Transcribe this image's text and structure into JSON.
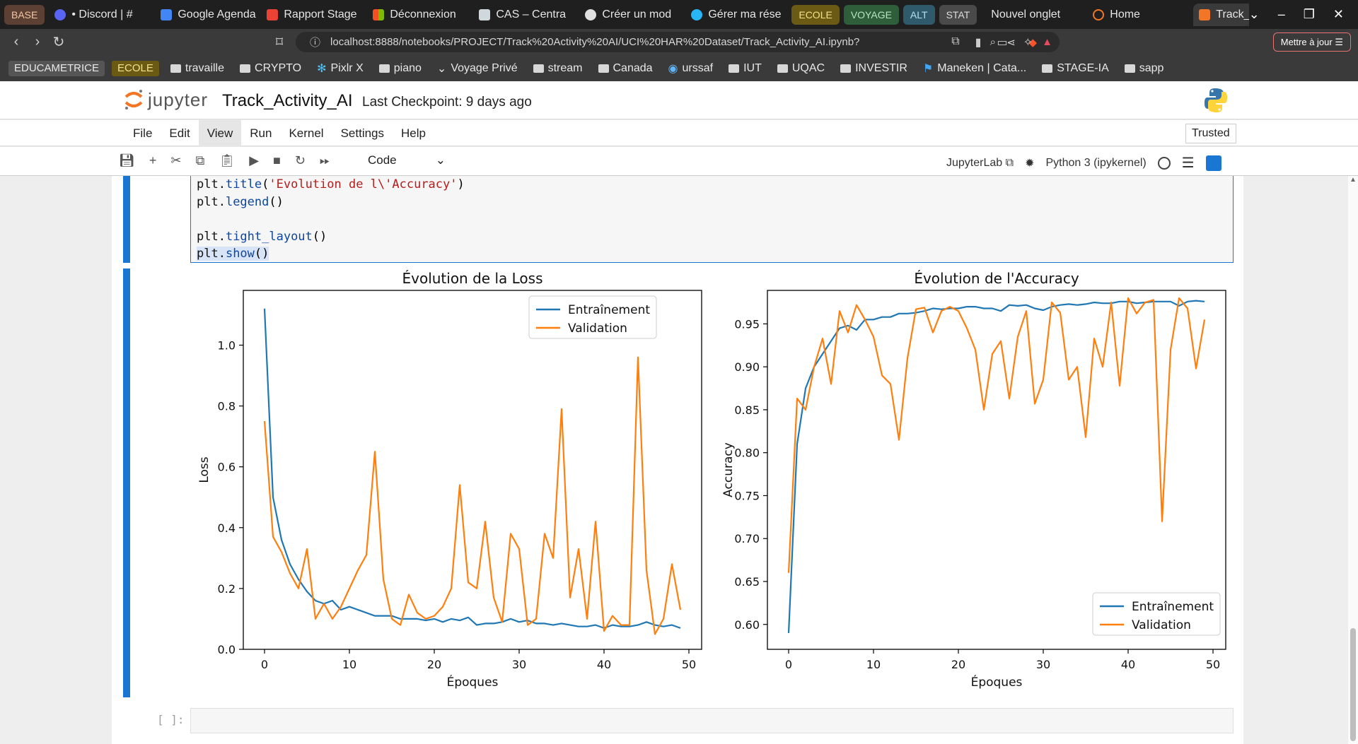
{
  "browser": {
    "tab_groups": [
      {
        "label": "BASE",
        "color": "#5c4033"
      },
      {
        "label": "ECOLE",
        "color": "#6b5a14"
      },
      {
        "label": "VOYAGE",
        "color": "#2e5e3a"
      },
      {
        "label": "ALT",
        "color": "#2f5a6b"
      },
      {
        "label": "STAT",
        "color": "#4a4a4a"
      }
    ],
    "tabs": [
      {
        "title": "• Discord | #",
        "color": "#5865f2"
      },
      {
        "title": "Google Agenda",
        "color": "#4285f4"
      },
      {
        "title": "Rapport Stage",
        "color": "#ea4335"
      },
      {
        "title": "Déconnexion",
        "color": "#f25022"
      },
      {
        "title": "CAS – Centra",
        "color": "#cfd8dc"
      },
      {
        "title": "Créer un mod",
        "color": "#e0e0e0"
      },
      {
        "title": "Gérer ma rése",
        "color": "#29b6f6"
      }
    ],
    "tabs_after": [
      {
        "title": "Nouvel onglet"
      },
      {
        "title": "Home",
        "color": "#f37626"
      }
    ],
    "active_tab": "Track_Ac",
    "url": "localhost:8888/notebooks/PROJECT/Track%20Activity%20AI/UCI%20HAR%20Dataset/Track_Activity_AI.ipynb?",
    "update_button": "Mettre à jour",
    "bookmark_groups": [
      {
        "label": "EDUCAMETRICE",
        "color": "#555"
      },
      {
        "label": "ECOLE",
        "color": "#6b5a14"
      }
    ],
    "bookmarks": [
      "travaille",
      "CRYPTO",
      "Pixlr X",
      "piano",
      "Voyage Privé",
      "stream",
      "Canada",
      "urssaf",
      "IUT",
      "UQAC",
      "INVESTIR",
      "Maneken | Cata...",
      "STAGE-IA",
      "sapp"
    ]
  },
  "jupyter": {
    "logo_text": "jupyter",
    "notebook_title": "Track_Activity_AI",
    "checkpoint": "Last Checkpoint: 9 days ago",
    "menu": [
      "File",
      "Edit",
      "View",
      "Run",
      "Kernel",
      "Settings",
      "Help"
    ],
    "active_menu": "View",
    "trusted": "Trusted",
    "cell_type": "Code",
    "jupyterlab_link": "JupyterLab",
    "kernel": "Python 3 (ipykernel)",
    "empty_prompt": "[ ]:"
  },
  "code_lines": [
    {
      "obj": "plt.",
      "fn": "title",
      "rest_open": "(",
      "str": "'Evolution de l\\'Accuracy'",
      "rest_close": ")"
    },
    {
      "obj": "plt.",
      "fn": "legend",
      "rest_open": "()",
      "str": "",
      "rest_close": ""
    },
    {
      "obj": "",
      "fn": "",
      "rest_open": "",
      "str": "",
      "rest_close": ""
    },
    {
      "obj": "plt.",
      "fn": "tight_layout",
      "rest_open": "()",
      "str": "",
      "rest_close": ""
    },
    {
      "obj": "plt.",
      "fn": "show",
      "rest_open": "()",
      "str": "",
      "rest_close": "",
      "highlight": true
    }
  ],
  "chart_data": [
    {
      "type": "line",
      "title": "Évolution de la Loss",
      "xlabel": "Époques",
      "ylabel": "Loss",
      "xlim": [
        -2.5,
        51.5
      ],
      "ylim": [
        0.0,
        1.18
      ],
      "xticks": [
        0,
        10,
        20,
        30,
        40,
        50
      ],
      "yticks": [
        0.0,
        0.2,
        0.4,
        0.6,
        0.8,
        1.0
      ],
      "ytick_labels": [
        "0.0",
        "0.2",
        "0.4",
        "0.6",
        "0.8",
        "1.0"
      ],
      "legend_position": "top-right",
      "x": [
        0,
        1,
        2,
        3,
        4,
        5,
        6,
        7,
        8,
        9,
        10,
        11,
        12,
        13,
        14,
        15,
        16,
        17,
        18,
        19,
        20,
        21,
        22,
        23,
        24,
        25,
        26,
        27,
        28,
        29,
        30,
        31,
        32,
        33,
        34,
        35,
        36,
        37,
        38,
        39,
        40,
        41,
        42,
        43,
        44,
        45,
        46,
        47,
        48,
        49
      ],
      "series": [
        {
          "name": "Entraînement",
          "color": "#1f77b4",
          "values": [
            1.12,
            0.5,
            0.36,
            0.28,
            0.23,
            0.19,
            0.16,
            0.15,
            0.16,
            0.13,
            0.14,
            0.13,
            0.12,
            0.11,
            0.11,
            0.11,
            0.1,
            0.1,
            0.1,
            0.095,
            0.1,
            0.09,
            0.1,
            0.095,
            0.105,
            0.08,
            0.085,
            0.085,
            0.09,
            0.1,
            0.09,
            0.095,
            0.085,
            0.085,
            0.08,
            0.085,
            0.08,
            0.075,
            0.075,
            0.08,
            0.07,
            0.08,
            0.075,
            0.075,
            0.08,
            0.09,
            0.08,
            0.075,
            0.08,
            0.07
          ]
        },
        {
          "name": "Validation",
          "color": "#ff7f0e",
          "values": [
            0.75,
            0.37,
            0.32,
            0.25,
            0.2,
            0.33,
            0.1,
            0.15,
            0.1,
            0.14,
            0.2,
            0.26,
            0.31,
            0.65,
            0.23,
            0.1,
            0.08,
            0.18,
            0.12,
            0.1,
            0.11,
            0.14,
            0.2,
            0.54,
            0.22,
            0.2,
            0.42,
            0.17,
            0.09,
            0.38,
            0.33,
            0.08,
            0.1,
            0.38,
            0.3,
            0.79,
            0.17,
            0.33,
            0.1,
            0.42,
            0.06,
            0.11,
            0.08,
            0.08,
            0.96,
            0.26,
            0.05,
            0.1,
            0.28,
            0.13
          ]
        }
      ]
    },
    {
      "type": "line",
      "title": "Évolution de l'Accuracy",
      "xlabel": "Époques",
      "ylabel": "Accuracy",
      "xlim": [
        -2.5,
        51.5
      ],
      "ylim": [
        0.571,
        0.989
      ],
      "xticks": [
        0,
        10,
        20,
        30,
        40,
        50
      ],
      "yticks": [
        0.6,
        0.65,
        0.7,
        0.75,
        0.8,
        0.85,
        0.9,
        0.95
      ],
      "ytick_labels": [
        "0.60",
        "0.65",
        "0.70",
        "0.75",
        "0.80",
        "0.85",
        "0.90",
        "0.95"
      ],
      "legend_position": "bottom-right",
      "x": [
        0,
        1,
        2,
        3,
        4,
        5,
        6,
        7,
        8,
        9,
        10,
        11,
        12,
        13,
        14,
        15,
        16,
        17,
        18,
        19,
        20,
        21,
        22,
        23,
        24,
        25,
        26,
        27,
        28,
        29,
        30,
        31,
        32,
        33,
        34,
        35,
        36,
        37,
        38,
        39,
        40,
        41,
        42,
        43,
        44,
        45,
        46,
        47,
        48,
        49
      ],
      "series": [
        {
          "name": "Entraînement",
          "color": "#1f77b4",
          "values": [
            0.59,
            0.81,
            0.875,
            0.9,
            0.915,
            0.93,
            0.945,
            0.948,
            0.943,
            0.955,
            0.955,
            0.958,
            0.958,
            0.962,
            0.962,
            0.963,
            0.965,
            0.968,
            0.967,
            0.968,
            0.968,
            0.97,
            0.97,
            0.968,
            0.968,
            0.965,
            0.972,
            0.971,
            0.972,
            0.968,
            0.966,
            0.97,
            0.972,
            0.973,
            0.972,
            0.973,
            0.975,
            0.974,
            0.974,
            0.976,
            0.976,
            0.974,
            0.975,
            0.976,
            0.976,
            0.976,
            0.971,
            0.976,
            0.977,
            0.976
          ]
        },
        {
          "name": "Validation",
          "color": "#ff7f0e",
          "values": [
            0.66,
            0.863,
            0.85,
            0.9,
            0.933,
            0.88,
            0.965,
            0.94,
            0.972,
            0.955,
            0.935,
            0.89,
            0.88,
            0.815,
            0.91,
            0.967,
            0.969,
            0.94,
            0.965,
            0.97,
            0.965,
            0.945,
            0.92,
            0.85,
            0.915,
            0.93,
            0.863,
            0.935,
            0.965,
            0.857,
            0.885,
            0.975,
            0.963,
            0.885,
            0.9,
            0.818,
            0.933,
            0.9,
            0.975,
            0.878,
            0.98,
            0.962,
            0.975,
            0.978,
            0.72,
            0.92,
            0.98,
            0.968,
            0.898,
            0.955
          ]
        }
      ]
    }
  ]
}
